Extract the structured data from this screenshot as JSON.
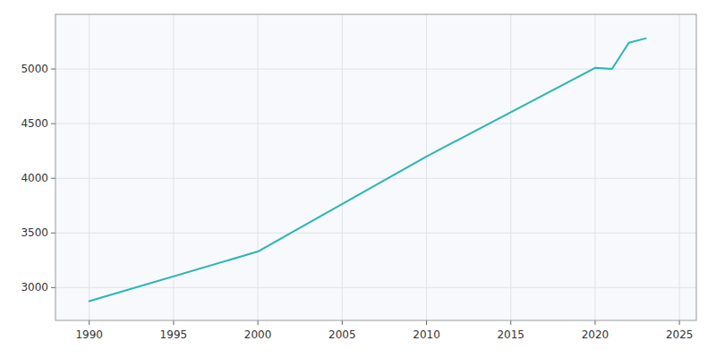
{
  "chart_data": {
    "type": "line",
    "x": [
      1990,
      2000,
      2010,
      2020,
      2021,
      2022,
      2023
    ],
    "values": [
      2876,
      3330,
      4200,
      5010,
      5000,
      5240,
      5280
    ],
    "color": "#2ab5b5",
    "xlim": [
      1988,
      2026
    ],
    "ylim": [
      2700,
      5500
    ],
    "xticks": [
      1990,
      1995,
      2000,
      2005,
      2010,
      2015,
      2020,
      2025
    ],
    "yticks": [
      3000,
      3500,
      4000,
      4500,
      5000
    ],
    "grid": true
  }
}
